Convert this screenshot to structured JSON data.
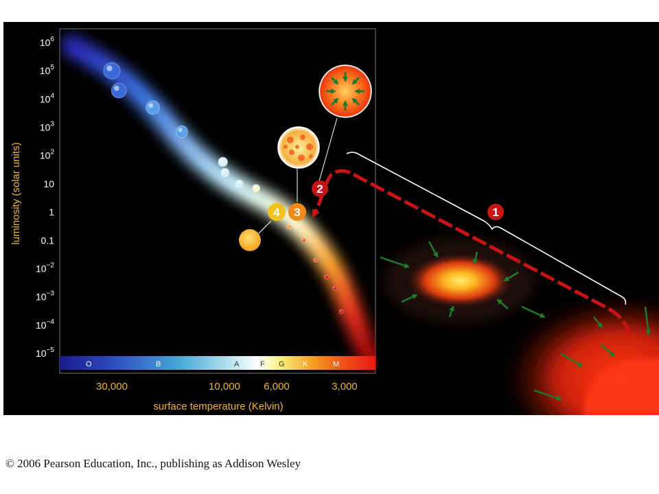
{
  "chart_data": {
    "type": "scatter",
    "ylabel": "luminosity (solar units)",
    "xlabel": "surface temperature (Kelvin)",
    "y_ticks": [
      {
        "base": "10",
        "exp": "6"
      },
      {
        "base": "10",
        "exp": "5"
      },
      {
        "base": "10",
        "exp": "4"
      },
      {
        "base": "10",
        "exp": "3"
      },
      {
        "base": "10",
        "exp": "2"
      },
      {
        "base": "10",
        "exp": ""
      },
      {
        "base": "1",
        "exp": ""
      },
      {
        "base": "0.1",
        "exp": ""
      },
      {
        "base": "10",
        "exp": "−2"
      },
      {
        "base": "10",
        "exp": "−3"
      },
      {
        "base": "10",
        "exp": "−4"
      },
      {
        "base": "10",
        "exp": "−5"
      }
    ],
    "x_ticks": [
      "30,000",
      "10,000",
      "6,000",
      "3,000"
    ],
    "spectral_classes": [
      "O",
      "B",
      "A",
      "F",
      "G",
      "K",
      "M"
    ],
    "x_scale": "log, reversed",
    "y_scale": "log",
    "main_sequence_stars": [
      {
        "temp": 30000,
        "lum": 100000
      },
      {
        "temp": 28000,
        "lum": 20000
      },
      {
        "temp": 20000,
        "lum": 5000
      },
      {
        "temp": 15000,
        "lum": 700
      },
      {
        "temp": 10000,
        "lum": 60
      },
      {
        "temp": 9800,
        "lum": 25
      },
      {
        "temp": 8500,
        "lum": 10
      },
      {
        "temp": 7200,
        "lum": 7
      },
      {
        "temp": 5200,
        "lum": 0.3
      },
      {
        "temp": 4500,
        "lum": 0.1
      },
      {
        "temp": 4000,
        "lum": 0.02
      },
      {
        "temp": 3600,
        "lum": 0.005
      },
      {
        "temp": 3300,
        "lum": 0.002
      },
      {
        "temp": 3100,
        "lum": 0.0003
      }
    ]
  },
  "stages": [
    "1",
    "2",
    "3",
    "4"
  ],
  "copyright": "© 2006 Pearson Education, Inc., publishing as Addison Wesley",
  "colors": {
    "axis_text": "#f2b338",
    "track_red": "#c81414",
    "badge_red": "#c81414",
    "badge_orange": "#f08a18",
    "badge_yellow": "#f2c21c",
    "arrow_green": "#1f7a2e"
  }
}
